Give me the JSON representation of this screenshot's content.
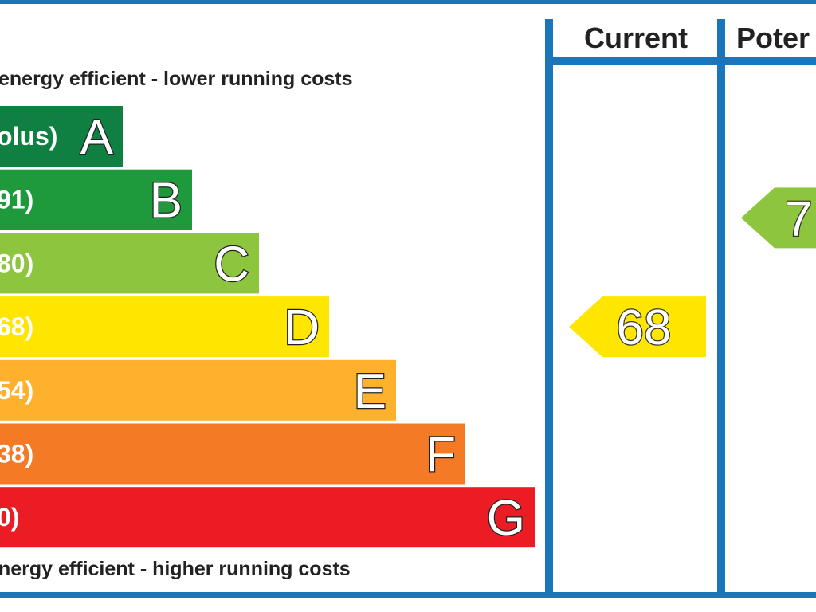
{
  "chart_data": {
    "type": "bar",
    "top_caption": "energy efficient - lower running costs",
    "bottom_caption": "nergy efficient - higher running costs",
    "bands": [
      {
        "range": "olus)",
        "letter": "A",
        "color": "#0f8041"
      },
      {
        "range": "91)",
        "letter": "B",
        "color": "#1e9a3c"
      },
      {
        "range": "80)",
        "letter": "C",
        "color": "#8dc53e"
      },
      {
        "range": "68)",
        "letter": "D",
        "color": "#ffe600"
      },
      {
        "range": "54)",
        "letter": "E",
        "color": "#fdb12d"
      },
      {
        "range": "38)",
        "letter": "F",
        "color": "#f57a26"
      },
      {
        "range": "0)",
        "letter": "G",
        "color": "#ec1c24"
      }
    ],
    "columns": [
      {
        "header": "Current",
        "value": "68",
        "band": "D",
        "color": "#ffe600"
      },
      {
        "header": "Poter",
        "value": "7",
        "band": "C",
        "color": "#8dc53e"
      }
    ],
    "frame_color": "#1b75bb"
  }
}
